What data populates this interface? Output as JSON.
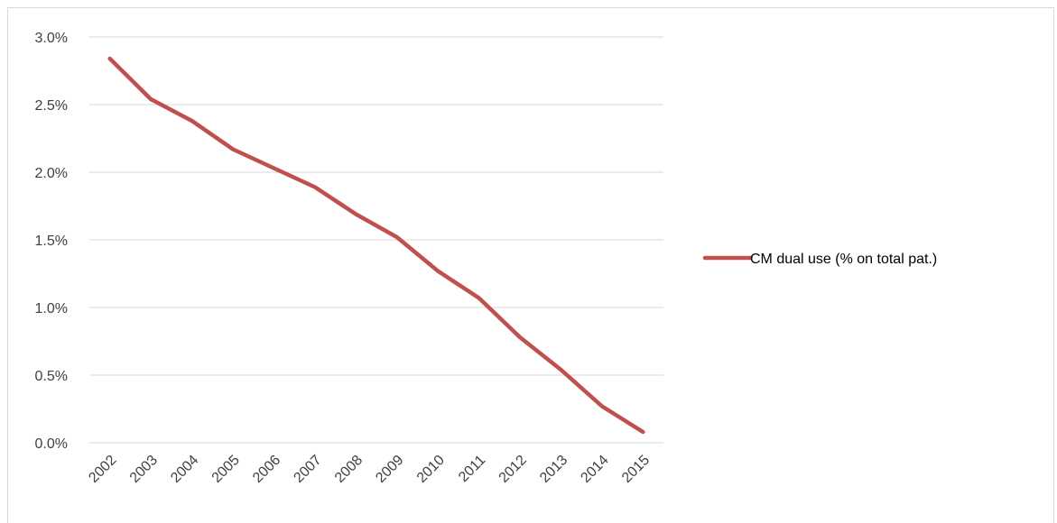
{
  "chart_data": {
    "type": "line",
    "title": "",
    "xlabel": "",
    "ylabel": "",
    "categories": [
      "2002",
      "2003",
      "2004",
      "2005",
      "2006",
      "2007",
      "2008",
      "2009",
      "2010",
      "2011",
      "2012",
      "2013",
      "2014",
      "2015"
    ],
    "series": [
      {
        "name": "CM dual use (% on total pat.)",
        "color": "#c0504d",
        "values": [
          2.84,
          2.54,
          2.38,
          2.17,
          2.03,
          1.89,
          1.69,
          1.52,
          1.27,
          1.07,
          0.78,
          0.54,
          0.27,
          0.08
        ]
      }
    ],
    "ylim": [
      0,
      3.0
    ],
    "yticks": [
      "0.0%",
      "0.5%",
      "1.0%",
      "1.5%",
      "2.0%",
      "2.5%",
      "3.0%"
    ],
    "ytick_values": [
      0,
      0.5,
      1.0,
      1.5,
      2.0,
      2.5,
      3.0
    ],
    "grid": true,
    "legend_position": "right",
    "colors": {
      "gridline": "#d9d9d9",
      "axis": "#d9d9d9"
    }
  }
}
